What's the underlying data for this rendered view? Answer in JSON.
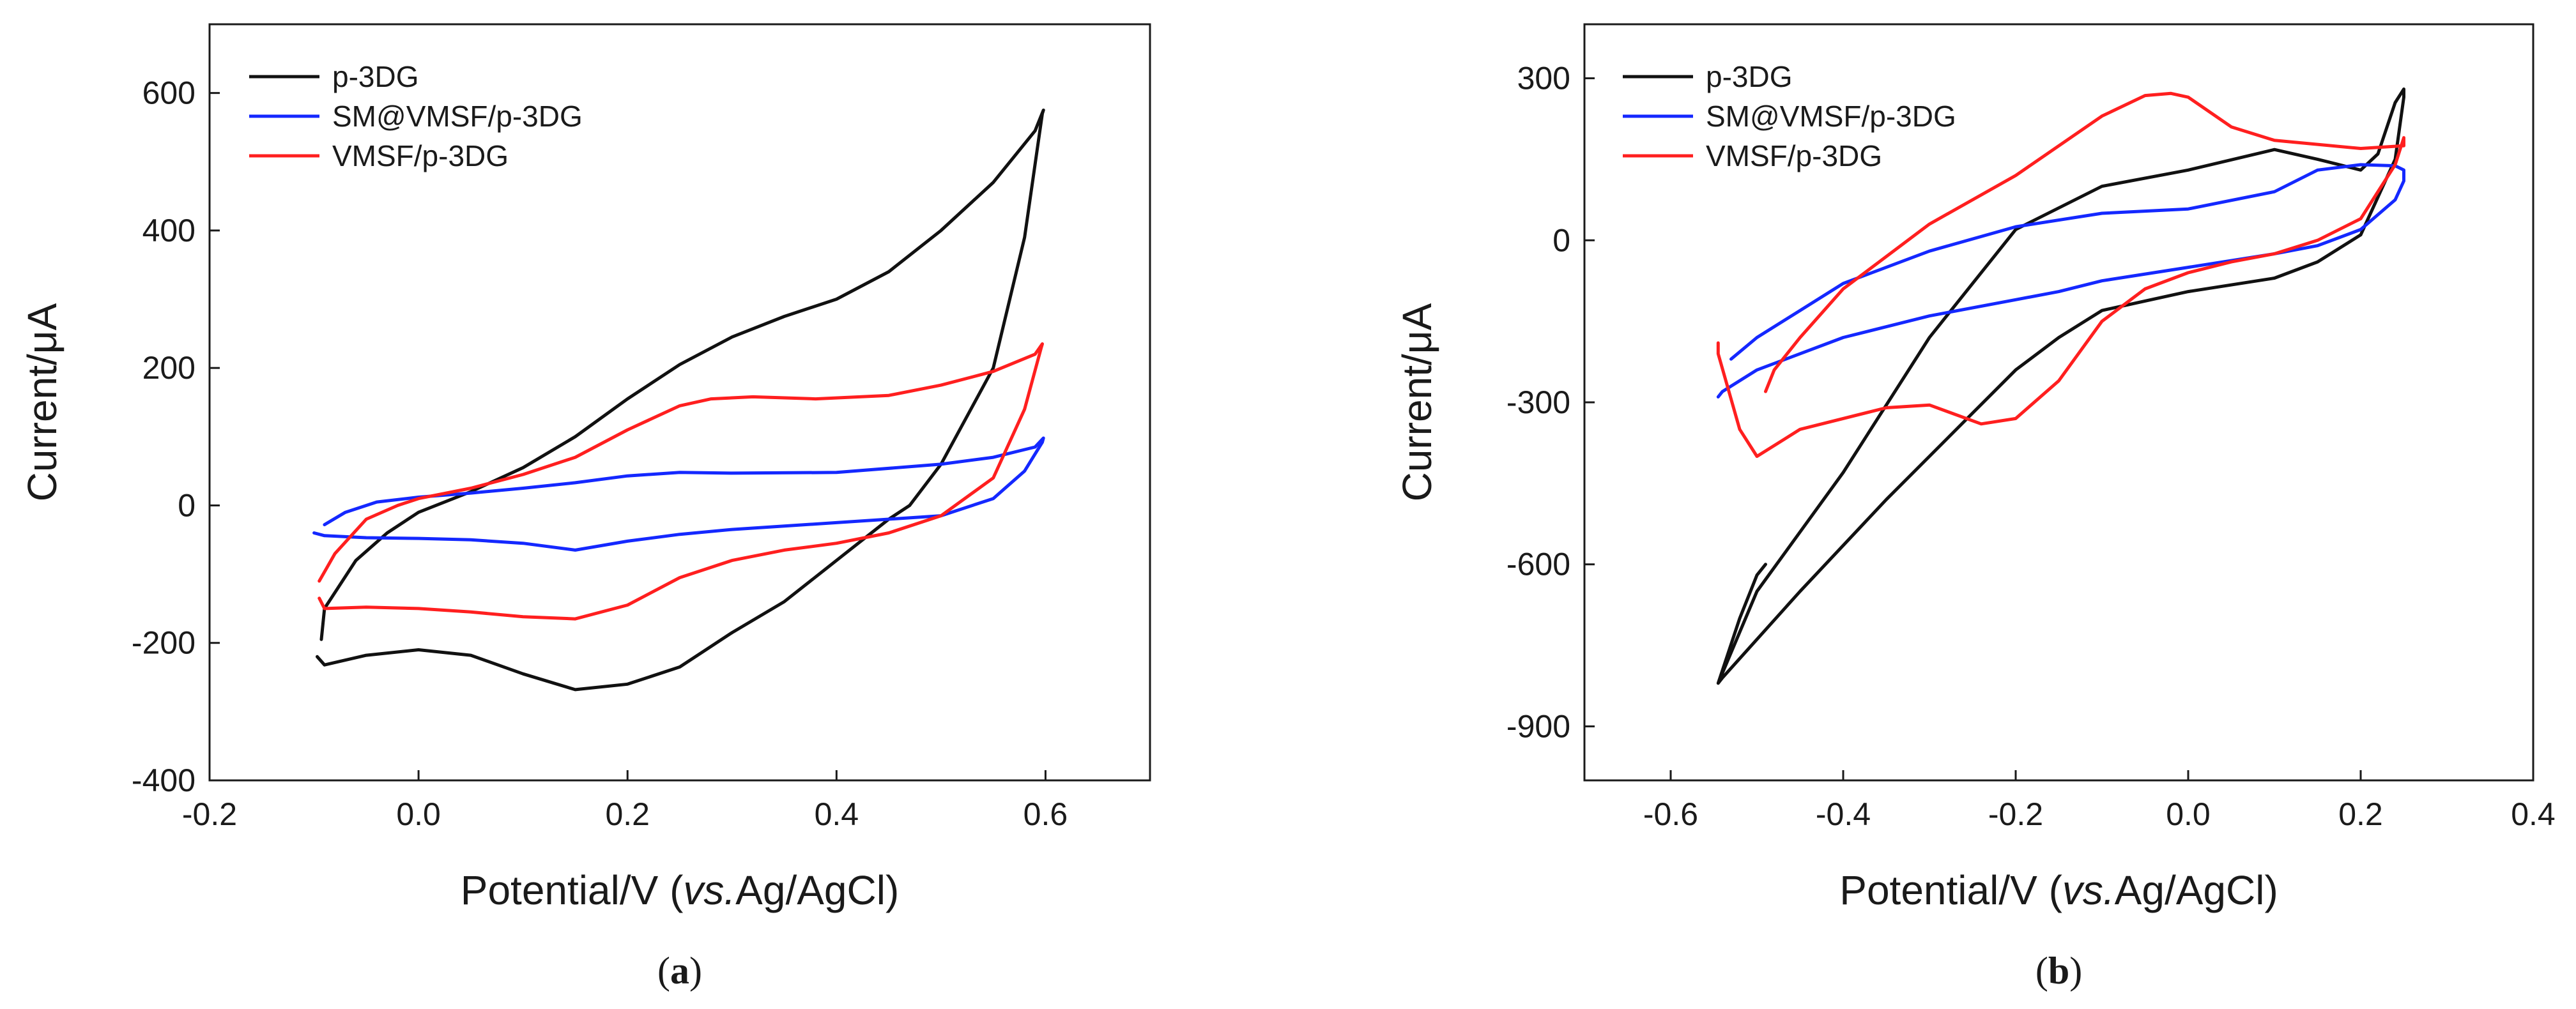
{
  "colors": {
    "p-3DG": "#111111",
    "SM@VMSF/p-3DG": "#1428ff",
    "VMSF/p-3DG": "#ff1f1f"
  },
  "chart_data": [
    {
      "id": "a",
      "type": "line",
      "caption": {
        "open": "(",
        "letter": "a",
        "close": ")"
      },
      "xlabel": {
        "prefix": "Potential/V (",
        "italic": "vs.",
        "suffix": "Ag/AgCl)"
      },
      "ylabel": "Current/μA",
      "xlim": [
        -0.2,
        0.7
      ],
      "ylim": [
        -400,
        700
      ],
      "xticks": [
        -0.2,
        0.0,
        0.2,
        0.4,
        0.6
      ],
      "xtick_labels": [
        "-0.2",
        "0.0",
        "0.2",
        "0.4",
        "0.6"
      ],
      "yticks": [
        -400,
        -200,
        0,
        200,
        400,
        600
      ],
      "ytick_labels": [
        "-400",
        "-200",
        "0",
        "200",
        "400",
        "600"
      ],
      "legend_position": "top-left",
      "series": [
        {
          "name": "p-3DG",
          "x": [
            -0.093,
            -0.09,
            -0.06,
            -0.03,
            0.0,
            0.05,
            0.1,
            0.15,
            0.2,
            0.25,
            0.3,
            0.35,
            0.4,
            0.45,
            0.5,
            0.55,
            0.59,
            0.598,
            0.597,
            0.58,
            0.55,
            0.5,
            0.47,
            0.45,
            0.4,
            0.35,
            0.3,
            0.25,
            0.2,
            0.15,
            0.1,
            0.05,
            0.0,
            -0.05,
            -0.09,
            -0.097
          ],
          "y": [
            -195,
            -150,
            -80,
            -40,
            -10,
            20,
            55,
            100,
            155,
            205,
            245,
            275,
            300,
            340,
            400,
            470,
            545,
            575,
            570,
            390,
            200,
            60,
            0,
            -20,
            -80,
            -140,
            -185,
            -235,
            -260,
            -268,
            -245,
            -218,
            -210,
            -218,
            -232,
            -220
          ]
        },
        {
          "name": "SM@VMSF/p-3DG",
          "x": [
            -0.09,
            -0.07,
            -0.04,
            0.0,
            0.05,
            0.1,
            0.15,
            0.2,
            0.25,
            0.3,
            0.4,
            0.5,
            0.55,
            0.59,
            0.598,
            0.597,
            0.58,
            0.55,
            0.5,
            0.45,
            0.4,
            0.35,
            0.3,
            0.25,
            0.2,
            0.15,
            0.1,
            0.05,
            0.0,
            -0.05,
            -0.09,
            -0.1
          ],
          "y": [
            -28,
            -10,
            5,
            12,
            18,
            25,
            33,
            43,
            48,
            47,
            48,
            60,
            70,
            85,
            98,
            92,
            50,
            10,
            -15,
            -20,
            -25,
            -30,
            -35,
            -42,
            -52,
            -65,
            -55,
            -50,
            -48,
            -47,
            -44,
            -40
          ]
        },
        {
          "name": "VMSF/p-3DG",
          "x": [
            -0.095,
            -0.08,
            -0.05,
            -0.02,
            0.0,
            0.05,
            0.1,
            0.15,
            0.2,
            0.25,
            0.28,
            0.32,
            0.38,
            0.45,
            0.5,
            0.55,
            0.59,
            0.597,
            0.596,
            0.58,
            0.55,
            0.5,
            0.45,
            0.4,
            0.35,
            0.3,
            0.25,
            0.2,
            0.15,
            0.1,
            0.05,
            0.0,
            -0.05,
            -0.09,
            -0.095
          ],
          "y": [
            -110,
            -70,
            -20,
            0,
            10,
            25,
            45,
            70,
            110,
            145,
            155,
            158,
            155,
            160,
            175,
            195,
            220,
            235,
            230,
            140,
            40,
            -15,
            -40,
            -55,
            -65,
            -80,
            -105,
            -145,
            -165,
            -162,
            -155,
            -150,
            -148,
            -150,
            -135
          ]
        }
      ]
    },
    {
      "id": "b",
      "type": "line",
      "caption": {
        "open": "(",
        "letter": "b",
        "close": ")"
      },
      "xlabel": {
        "prefix": "Potential/V (",
        "italic": "vs.",
        "suffix": "Ag/AgCl)"
      },
      "ylabel": "Current/μA",
      "xlim": [
        -0.7,
        0.4
      ],
      "ylim": [
        -1000,
        400
      ],
      "xticks": [
        -0.6,
        -0.4,
        -0.2,
        0.0,
        0.2,
        0.4
      ],
      "xtick_labels": [
        "-0.6",
        "-0.4",
        "-0.2",
        "0.0",
        "0.2",
        "0.4"
      ],
      "yticks": [
        -900,
        -600,
        -300,
        0,
        300
      ],
      "ytick_labels": [
        "-900",
        "-600",
        "-300",
        "0",
        "300"
      ],
      "legend_position": "top-left",
      "series": [
        {
          "name": "p-3DG",
          "x": [
            -0.49,
            -0.5,
            -0.52,
            -0.545,
            -0.54,
            -0.45,
            -0.35,
            -0.25,
            -0.2,
            -0.15,
            -0.1,
            0.0,
            0.1,
            0.15,
            0.2,
            0.24,
            0.25,
            0.25,
            0.24,
            0.22,
            0.2,
            0.15,
            0.1,
            0.0,
            -0.1,
            -0.2,
            -0.3,
            -0.4,
            -0.5,
            -0.545
          ],
          "y": [
            -600,
            -620,
            -700,
            -820,
            -810,
            -650,
            -480,
            -320,
            -240,
            -180,
            -130,
            -95,
            -70,
            -40,
            10,
            150,
            265,
            280,
            255,
            160,
            130,
            150,
            168,
            130,
            100,
            20,
            -180,
            -430,
            -650,
            -820
          ]
        },
        {
          "name": "SM@VMSF/p-3DG",
          "x": [
            -0.53,
            -0.5,
            -0.45,
            -0.4,
            -0.3,
            -0.2,
            -0.1,
            0.0,
            0.1,
            0.15,
            0.2,
            0.24,
            0.25,
            0.25,
            0.24,
            0.2,
            0.15,
            0.1,
            0.0,
            -0.1,
            -0.15,
            -0.2,
            -0.3,
            -0.4,
            -0.5,
            -0.54,
            -0.545
          ],
          "y": [
            -220,
            -180,
            -130,
            -80,
            -20,
            25,
            50,
            58,
            90,
            130,
            140,
            138,
            130,
            110,
            75,
            20,
            -10,
            -25,
            -50,
            -75,
            -95,
            -110,
            -140,
            -180,
            -240,
            -280,
            -290
          ]
        },
        {
          "name": "VMSF/p-3DG",
          "x": [
            -0.49,
            -0.48,
            -0.45,
            -0.4,
            -0.3,
            -0.2,
            -0.1,
            -0.05,
            -0.02,
            0.0,
            0.05,
            0.1,
            0.2,
            0.25,
            0.25,
            0.24,
            0.2,
            0.15,
            0.1,
            0.05,
            0.0,
            -0.05,
            -0.1,
            -0.15,
            -0.2,
            -0.24,
            -0.3,
            -0.35,
            -0.45,
            -0.5,
            -0.52,
            -0.545,
            -0.545
          ],
          "y": [
            -280,
            -240,
            -180,
            -90,
            30,
            120,
            230,
            268,
            272,
            265,
            210,
            185,
            170,
            175,
            190,
            140,
            40,
            0,
            -25,
            -40,
            -60,
            -90,
            -150,
            -260,
            -330,
            -340,
            -305,
            -310,
            -350,
            -400,
            -350,
            -210,
            -190
          ]
        }
      ]
    }
  ]
}
